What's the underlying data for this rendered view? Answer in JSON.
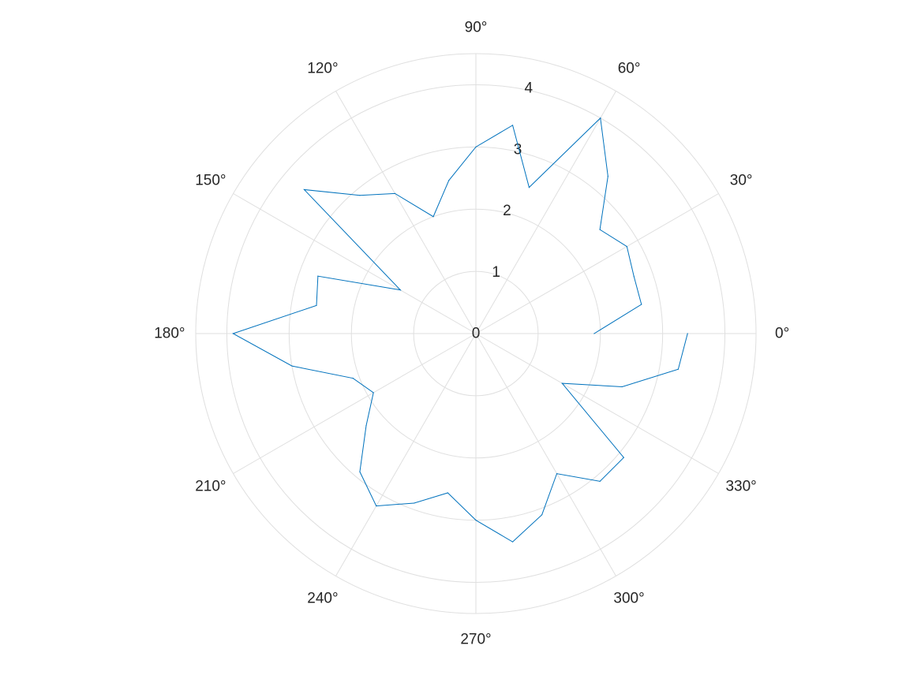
{
  "chart_data": {
    "type": "line",
    "subtype": "polar",
    "title": "",
    "theta_unit": "degrees",
    "theta_tick_labels": [
      "0°",
      "30°",
      "60°",
      "90°",
      "120°",
      "150°",
      "180°",
      "210°",
      "240°",
      "270°",
      "300°",
      "330°"
    ],
    "theta_ticks": [
      0,
      30,
      60,
      90,
      120,
      150,
      180,
      210,
      240,
      270,
      300,
      330
    ],
    "r_tick_labels": [
      "0",
      "1",
      "2",
      "3",
      "4"
    ],
    "r_ticks": [
      0,
      1,
      2,
      3,
      4
    ],
    "rlim": [
      0,
      4.5
    ],
    "grid": true,
    "series_color": "#0072bd",
    "series": [
      {
        "theta": [
          0,
          10,
          20,
          30,
          40,
          50,
          60,
          70,
          80,
          90,
          100,
          110,
          120,
          130,
          140,
          150,
          160,
          170,
          180,
          190,
          200,
          210,
          220,
          230,
          240,
          250,
          260,
          270,
          280,
          290,
          300,
          310,
          320,
          330,
          340,
          350,
          360
        ],
        "r": [
          1.9,
          2.7,
          2.7,
          2.8,
          2.6,
          3.3,
          4.0,
          2.5,
          3.4,
          3.0,
          2.5,
          2.0,
          2.6,
          2.9,
          3.6,
          1.4,
          2.7,
          2.6,
          3.9,
          3.0,
          2.1,
          1.9,
          2.3,
          2.9,
          3.2,
          2.9,
          2.6,
          3.0,
          3.4,
          3.1,
          2.6,
          3.1,
          3.1,
          1.6,
          2.5,
          3.3,
          3.4
        ]
      }
    ]
  }
}
